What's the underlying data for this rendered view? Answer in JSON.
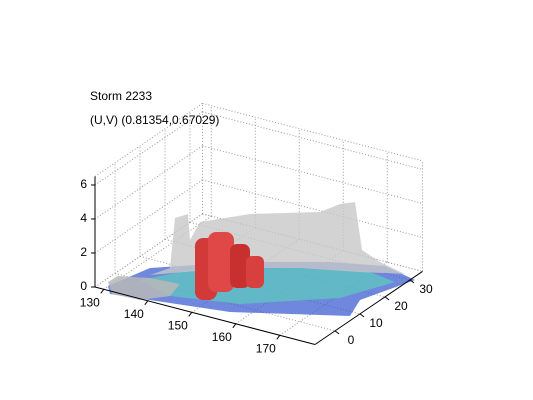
{
  "chart_data": {
    "type": "isosurface",
    "title": "Storm 2233",
    "subtitle": "(U,V) (0.81354,0.67029)",
    "xlim": [
      128,
      178
    ],
    "xticks": [
      130,
      140,
      150,
      160,
      170
    ],
    "ylim": [
      -8,
      35
    ],
    "yticks": [
      0,
      10,
      20,
      30
    ],
    "zlim": [
      0,
      6.5
    ],
    "zticks": [
      0,
      2,
      4,
      6
    ],
    "grid": true
  }
}
